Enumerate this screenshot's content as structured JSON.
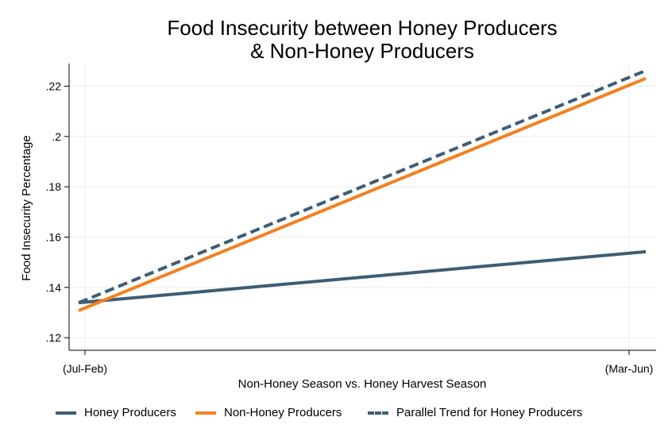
{
  "chart_data": {
    "type": "line",
    "title_line1": "Food Insecurity between Honey Producers",
    "title_line2": "& Non-Honey Producers",
    "xlabel": "Non-Honey Season vs. Honey Harvest Season",
    "ylabel": "Food Insecurity Percentage",
    "categories": [
      "(Jul-Feb)",
      "(Mar-Jun)"
    ],
    "ylim": [
      0.115,
      0.229
    ],
    "yticks": [
      0.12,
      0.14,
      0.16,
      0.18,
      0.2,
      0.22
    ],
    "ytick_labels": [
      ".12",
      ".14",
      ".16",
      ".18",
      ".2",
      ".22"
    ],
    "grid": true,
    "legend_position": "bottom",
    "series": [
      {
        "name": "Honey Producers",
        "values": [
          0.1339,
          0.1542
        ],
        "color": "#3e5d75",
        "style": "solid"
      },
      {
        "name": "Non-Honey Producers",
        "values": [
          0.1308,
          0.2231
        ],
        "color": "#f4801f",
        "style": "solid"
      },
      {
        "name": "Parallel Trend for Honey Producers",
        "values": [
          0.1339,
          0.2262
        ],
        "color": "#3e5d75",
        "style": "dashed"
      }
    ]
  }
}
